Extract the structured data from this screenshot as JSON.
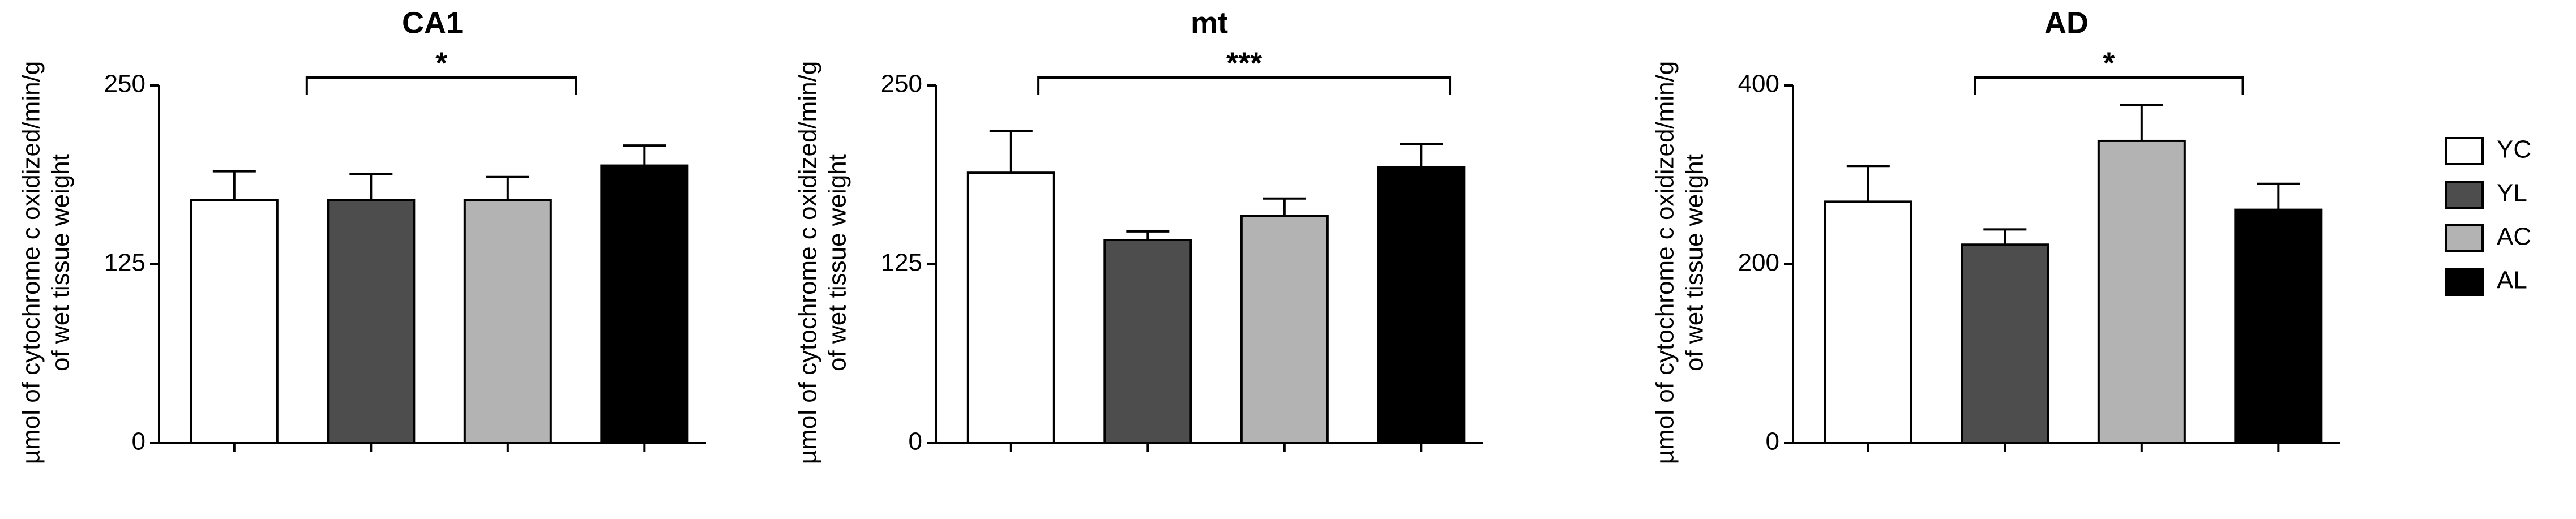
{
  "legend": [
    {
      "name": "YC",
      "color": "#ffffff"
    },
    {
      "name": "YL",
      "color": "#4d4d4d"
    },
    {
      "name": "AC",
      "color": "#b3b3b3"
    },
    {
      "name": "AL",
      "color": "#000000"
    }
  ],
  "chart_data": [
    {
      "type": "bar",
      "title": "CA1",
      "y_label": [
        "µmol of cytochrome c oxidized/min/g",
        "of wet tissue weight"
      ],
      "values": [
        170,
        170,
        170,
        194
      ],
      "errors": [
        20,
        18,
        16,
        14
      ],
      "ylim": [
        0,
        250
      ],
      "yticks": [
        0,
        125,
        250
      ],
      "annotation": "*"
    },
    {
      "type": "bar",
      "title": "mt",
      "y_label": [
        "µmol of cytochrome c oxidized/min/g",
        "of wet tissue weight"
      ],
      "values": [
        189,
        142,
        159,
        193
      ],
      "errors": [
        29,
        6,
        12,
        16
      ],
      "ylim": [
        0,
        250
      ],
      "yticks": [
        0,
        125,
        250
      ],
      "annotation": "***"
    },
    {
      "type": "bar",
      "title": "AD",
      "y_label": [
        "µmol of cytochrome c oxidized/min/g",
        "of wet tissue weight"
      ],
      "values": [
        270,
        222,
        338,
        261
      ],
      "errors": [
        40,
        17,
        40,
        29
      ],
      "ylim": [
        0,
        400
      ],
      "yticks": [
        0,
        200,
        400
      ],
      "annotation": "*"
    }
  ]
}
